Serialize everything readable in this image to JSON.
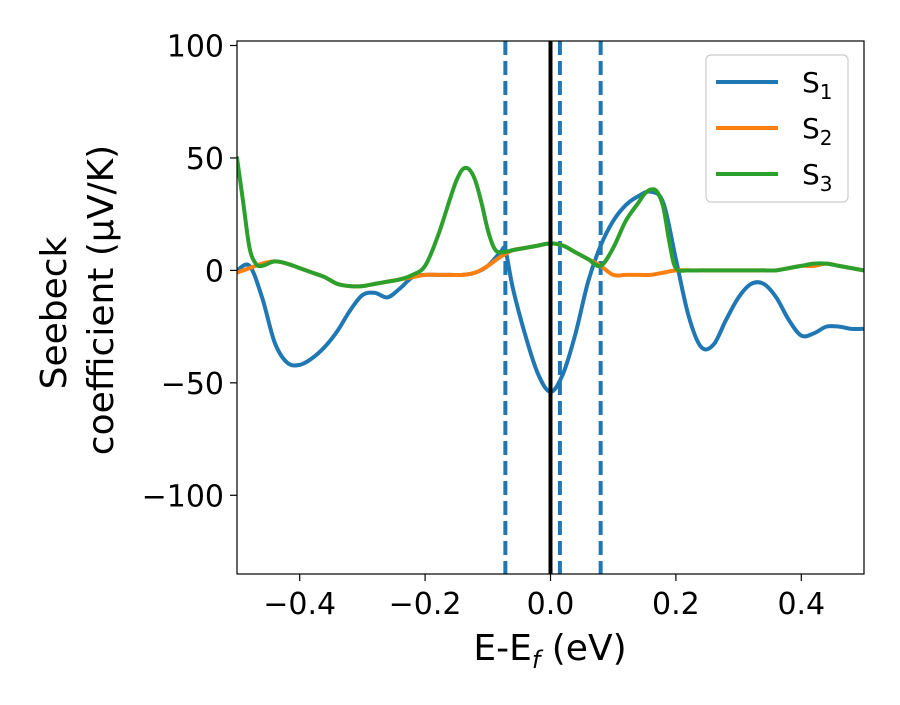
{
  "chart_data": {
    "type": "line",
    "title": "",
    "xlabel": "E-E",
    "xlabel_sub": "f",
    "xlabel_unit": " (eV)",
    "ylabel_line1": "Seebeck",
    "ylabel_line2": "coefficient  (μV/K)",
    "xlim": [
      -0.5,
      0.5
    ],
    "ylim": [
      -135,
      102
    ],
    "xticks": [
      -0.4,
      -0.2,
      0.0,
      0.2,
      0.4
    ],
    "xtick_labels": [
      "−0.4",
      "−0.2",
      "0.0",
      "0.2",
      "0.4"
    ],
    "yticks": [
      100,
      50,
      0,
      -50,
      -100
    ],
    "ytick_labels": [
      "100",
      "50",
      "0",
      "−50",
      "−100"
    ],
    "grid": false,
    "legend_position": "top-right",
    "vertical_lines": [
      {
        "x": 0.0,
        "color": "#000000",
        "style": "solid"
      },
      {
        "x": -0.072,
        "color": "#1f77b4",
        "style": "dashed"
      },
      {
        "x": 0.015,
        "color": "#1f77b4",
        "style": "dashed"
      },
      {
        "x": 0.08,
        "color": "#1f77b4",
        "style": "dashed"
      }
    ],
    "series": [
      {
        "name": "S",
        "sub": "1",
        "color": "#1f77b4",
        "x": [
          -0.5,
          -0.48,
          -0.46,
          -0.44,
          -0.42,
          -0.4,
          -0.38,
          -0.36,
          -0.34,
          -0.32,
          -0.3,
          -0.28,
          -0.26,
          -0.24,
          -0.22,
          -0.2,
          -0.18,
          -0.16,
          -0.14,
          -0.12,
          -0.1,
          -0.08,
          -0.072,
          -0.06,
          -0.04,
          -0.02,
          0.0,
          0.02,
          0.04,
          0.06,
          0.08,
          0.1,
          0.12,
          0.14,
          0.16,
          0.18,
          0.2,
          0.22,
          0.24,
          0.26,
          0.28,
          0.3,
          0.32,
          0.34,
          0.36,
          0.38,
          0.4,
          0.42,
          0.44,
          0.46,
          0.48,
          0.5
        ],
        "values": [
          0,
          2,
          -12,
          -32,
          -41,
          -42,
          -39,
          -34,
          -27,
          -18,
          -11,
          -10,
          -12,
          -8,
          -3,
          -2,
          -2,
          -2,
          -2,
          -1,
          2,
          8,
          9,
          -8,
          -29,
          -46,
          -54,
          -46,
          -28,
          -5,
          11,
          22,
          29,
          33,
          35,
          30,
          5,
          -20,
          -34,
          -33,
          -22,
          -12,
          -6,
          -6,
          -12,
          -22,
          -29,
          -28,
          -25,
          -25,
          -26,
          -26
        ]
      },
      {
        "name": "S",
        "sub": "2",
        "color": "#ff7f0e",
        "x": [
          -0.5,
          -0.48,
          -0.46,
          -0.44,
          -0.42,
          -0.4,
          -0.38,
          -0.36,
          -0.34,
          -0.32,
          -0.3,
          -0.28,
          -0.26,
          -0.24,
          -0.22,
          -0.2,
          -0.18,
          -0.16,
          -0.14,
          -0.12,
          -0.1,
          -0.08,
          -0.06,
          -0.04,
          -0.02,
          0.0,
          0.02,
          0.04,
          0.06,
          0.08,
          0.1,
          0.12,
          0.14,
          0.16,
          0.18,
          0.2,
          0.22,
          0.24,
          0.26,
          0.28,
          0.3,
          0.32,
          0.34,
          0.36,
          0.38,
          0.4,
          0.42,
          0.44,
          0.46,
          0.48,
          0.5
        ],
        "values": [
          -1,
          1,
          3,
          4,
          3,
          1,
          -1,
          -3,
          -6,
          -7,
          -7,
          -6,
          -5,
          -4,
          -3,
          -2,
          -2,
          -2,
          -2,
          -1,
          2,
          6,
          9,
          10,
          11,
          12,
          11,
          8,
          5,
          2,
          -2,
          -2,
          -2,
          -2,
          -1,
          0,
          0,
          0,
          0,
          0,
          0,
          0,
          0,
          0,
          1,
          2,
          2,
          3,
          2,
          1,
          0
        ]
      },
      {
        "name": "S",
        "sub": "3",
        "color": "#2ca02c",
        "x": [
          -0.5,
          -0.49,
          -0.48,
          -0.47,
          -0.46,
          -0.44,
          -0.42,
          -0.4,
          -0.38,
          -0.36,
          -0.34,
          -0.32,
          -0.3,
          -0.28,
          -0.26,
          -0.24,
          -0.22,
          -0.2,
          -0.18,
          -0.16,
          -0.15,
          -0.14,
          -0.13,
          -0.12,
          -0.11,
          -0.1,
          -0.09,
          -0.08,
          -0.06,
          -0.04,
          -0.02,
          0.0,
          0.02,
          0.04,
          0.06,
          0.08,
          0.1,
          0.12,
          0.14,
          0.15,
          0.16,
          0.17,
          0.18,
          0.19,
          0.2,
          0.22,
          0.24,
          0.26,
          0.28,
          0.3,
          0.32,
          0.34,
          0.36,
          0.38,
          0.4,
          0.42,
          0.44,
          0.46,
          0.48,
          0.5
        ],
        "values": [
          50,
          30,
          10,
          3,
          2,
          4,
          3,
          1,
          -1,
          -3,
          -6,
          -7,
          -7,
          -6,
          -5,
          -4,
          -2,
          2,
          15,
          32,
          40,
          45,
          45,
          40,
          30,
          18,
          10,
          8,
          9,
          10,
          11,
          12,
          11,
          8,
          5,
          2,
          10,
          22,
          30,
          34,
          36,
          35,
          28,
          12,
          1,
          0,
          0,
          0,
          0,
          0,
          0,
          0,
          0,
          1,
          2,
          3,
          3,
          2,
          1,
          0
        ]
      }
    ]
  }
}
